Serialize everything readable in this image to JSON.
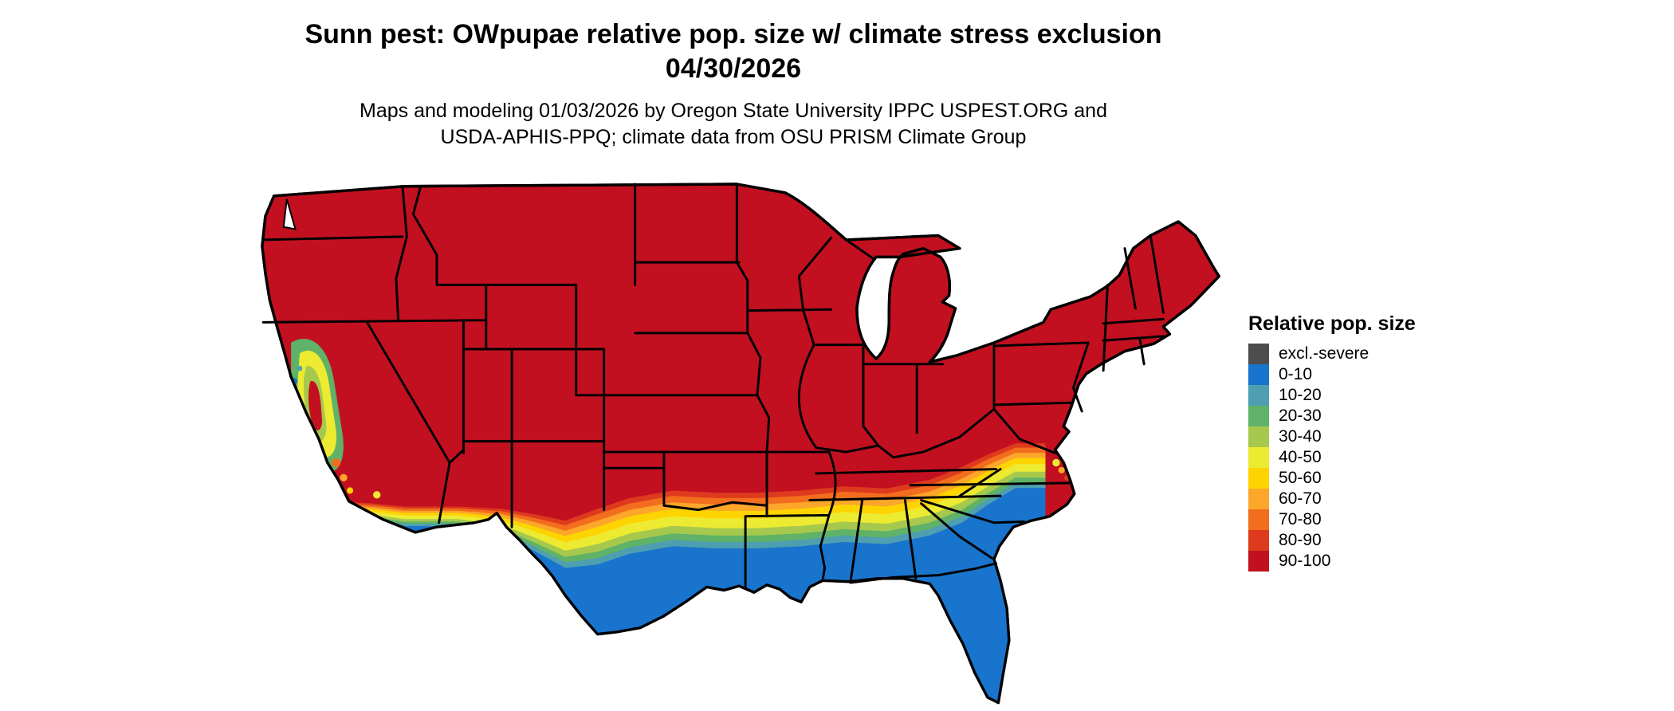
{
  "header": {
    "title_line1": "Sunn pest: OWpupae relative pop. size w/ climate stress exclusion",
    "title_line2": "04/30/2026",
    "credit_line1": "Maps and modeling 01/03/2026 by Oregon State University IPPC USPEST.ORG and",
    "credit_line2": "USDA-APHIS-PPQ; climate data from OSU PRISM Climate Group"
  },
  "legend": {
    "title": "Relative pop. size",
    "entries": [
      {
        "label": "excl.-severe",
        "color": "#4d4d4d"
      },
      {
        "label": "0-10",
        "color": "#1874cd"
      },
      {
        "label": "10-20",
        "color": "#4e9fb0"
      },
      {
        "label": "20-30",
        "color": "#5fb267"
      },
      {
        "label": "30-40",
        "color": "#a6c84d"
      },
      {
        "label": "40-50",
        "color": "#edea32"
      },
      {
        "label": "50-60",
        "color": "#fed400"
      },
      {
        "label": "60-70",
        "color": "#fca62a"
      },
      {
        "label": "70-80",
        "color": "#f26d1d"
      },
      {
        "label": "80-90",
        "color": "#de3a1d"
      },
      {
        "label": "90-100",
        "color": "#c21020"
      }
    ]
  },
  "map": {
    "area": "Contiguous United States",
    "dominant_class": "90-100",
    "southern_class": "0-10"
  }
}
